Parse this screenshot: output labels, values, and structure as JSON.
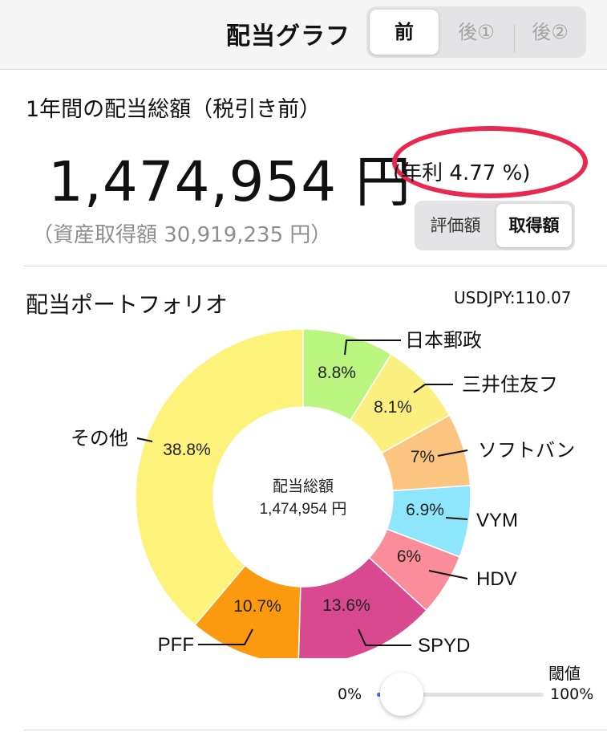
{
  "header": {
    "title": "配当グラフ",
    "tabs": [
      {
        "label": "前",
        "active": true
      },
      {
        "label": "後①",
        "active": false
      },
      {
        "label": "後②",
        "active": false
      }
    ]
  },
  "summary": {
    "section_title": "1年間の配当総額（税引き前）",
    "total": "1,474,954 円",
    "rate": "(年利 4.77 %)",
    "acquisition": "（資産取得額 30,919,235 円）",
    "basis_toggle": [
      {
        "label": "評価額",
        "active": false
      },
      {
        "label": "取得額",
        "active": true
      }
    ],
    "highlight_color": "#e8284e"
  },
  "portfolio": {
    "title": "配当ポートフォリオ",
    "fx_rate": "USDJPY:110.07",
    "center_label": "配当総額",
    "center_value": "1,474,954 円"
  },
  "chart_data": {
    "type": "pie",
    "style": "donut",
    "slices": [
      {
        "label": "日本郵政",
        "value": 8.8,
        "value_label": "8.8%",
        "color": "#b9f57f"
      },
      {
        "label": "三井住友フ",
        "value": 8.1,
        "value_label": "8.1%",
        "color": "#fbef80"
      },
      {
        "label": "ソフトバン",
        "value": 7.0,
        "value_label": "7%",
        "color": "#fbc47f"
      },
      {
        "label": "VYM",
        "value": 6.9,
        "value_label": "6.9%",
        "color": "#8de6fb"
      },
      {
        "label": "HDV",
        "value": 6.0,
        "value_label": "6%",
        "color": "#fb8c9a"
      },
      {
        "label": "SPYD",
        "value": 13.6,
        "value_label": "13.6%",
        "color": "#d9498f"
      },
      {
        "label": "PFF",
        "value": 10.7,
        "value_label": "10.7%",
        "color": "#fb9a0e"
      },
      {
        "label": "その他",
        "value": 38.8,
        "value_label": "38.8%",
        "color": "#fdf27a"
      }
    ]
  },
  "threshold": {
    "label": "閾値",
    "min_label": "0%",
    "max_label": "100%",
    "value": 0
  }
}
